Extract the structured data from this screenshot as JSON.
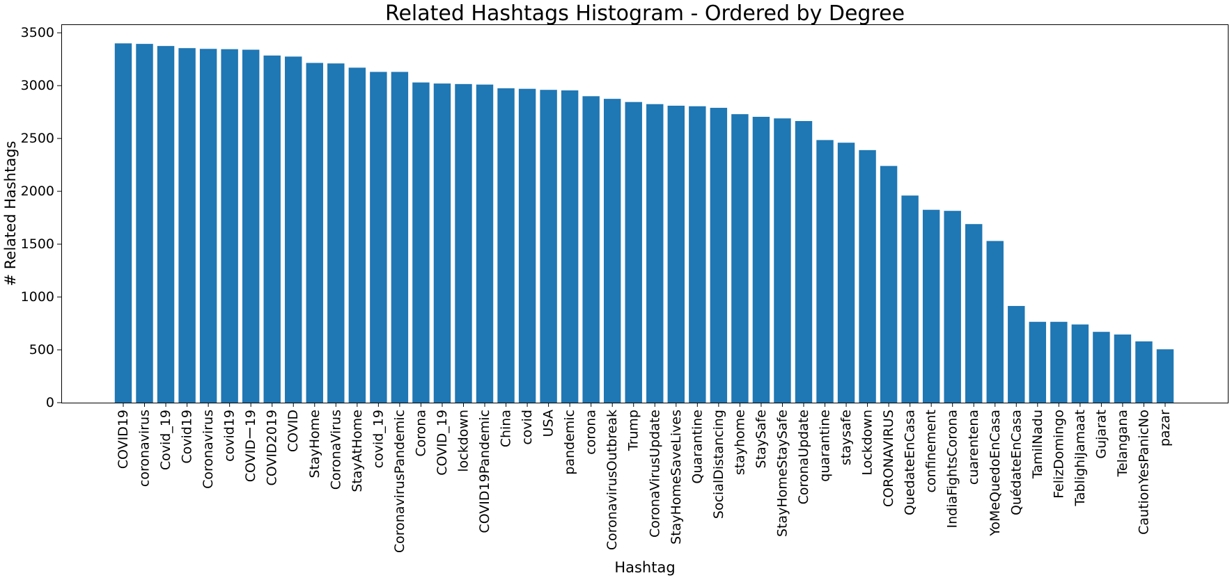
{
  "chart_data": {
    "type": "bar",
    "title": "Related Hashtags Histogram - Ordered by Degree",
    "xlabel": "Hashtag",
    "ylabel": "# Related Hashtags",
    "ylim": [
      0,
      3580
    ],
    "yticks": [
      0,
      500,
      1000,
      1500,
      2000,
      2500,
      3000,
      3500
    ],
    "grid": false,
    "bar_color": "#1f77b4",
    "categories": [
      "COVID19",
      "coronavirus",
      "Covid_19",
      "Covid19",
      "Coronavirus",
      "covid19",
      "COVIDー19",
      "COVID2019",
      "COVID",
      "StayHome",
      "CoronaVirus",
      "StayAtHome",
      "covid_19",
      "CoronavirusPandemic",
      "Corona",
      "COVID_19",
      "lockdown",
      "COVID19Pandemic",
      "China",
      "covid",
      "USA",
      "pandemic",
      "corona",
      "CoronavirusOutbreak",
      "Trump",
      "CoronaVirusUpdate",
      "StayHomeSaveLives",
      "Quarantine",
      "SocialDistancing",
      "stayhome",
      "StaySafe",
      "StayHomeStaySafe",
      "CoronaUpdate",
      "quarantine",
      "staysafe",
      "Lockdown",
      "CORONAVIRUS",
      "QuedateEnCasa",
      "confinement",
      "IndiaFightsCorona",
      "cuarentena",
      "YoMeQuedoEnCasa",
      "QuédateEnCasa",
      "TamilNadu",
      "FelizDomingo",
      "TablighiJamaat",
      "Gujarat",
      "Telangana",
      "CautionYesPanicNo",
      "pazar"
    ],
    "values": [
      3400,
      3395,
      3375,
      3355,
      3348,
      3345,
      3340,
      3285,
      3275,
      3215,
      3210,
      3170,
      3130,
      3130,
      3030,
      3020,
      3015,
      3010,
      2975,
      2970,
      2960,
      2955,
      2900,
      2875,
      2845,
      2825,
      2810,
      2805,
      2790,
      2730,
      2705,
      2690,
      2665,
      2485,
      2460,
      2390,
      2240,
      1960,
      1825,
      1815,
      1690,
      1530,
      915,
      765,
      765,
      740,
      670,
      645,
      580,
      505
    ]
  }
}
